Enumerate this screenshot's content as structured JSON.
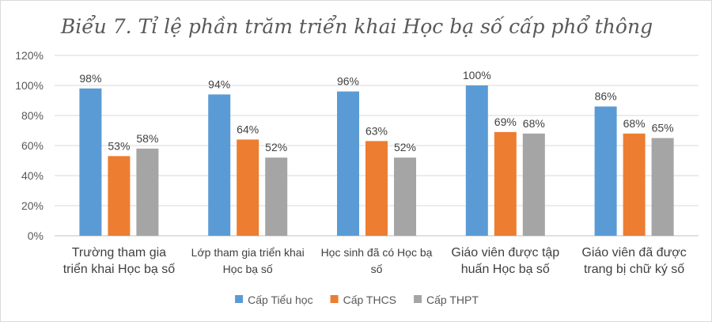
{
  "chart_data": {
    "type": "bar",
    "title": "Biểu 7. Tỉ lệ phần trăm triển khai Học bạ số cấp phổ thông",
    "categories": [
      [
        "Trường tham gia",
        "triển khai Học bạ số"
      ],
      [
        "Lớp tham gia triển khai",
        "Học bạ số"
      ],
      [
        "Học sinh đã có Học bạ",
        "số"
      ],
      [
        "Giáo viên được tập",
        "huấn  Học bạ số"
      ],
      [
        "Giáo viên đã được",
        "trang bị chữ ký số"
      ]
    ],
    "series": [
      {
        "name": "Cấp Tiểu học",
        "color": "#5b9bd5",
        "values": [
          98,
          94,
          96,
          100,
          86
        ],
        "labels": [
          "98%",
          "94%",
          "96%",
          "100%",
          "86%"
        ]
      },
      {
        "name": "Cấp THCS",
        "color": "#ed7d31",
        "values": [
          53,
          64,
          63,
          69,
          68
        ],
        "labels": [
          "53%",
          "64%",
          "63%",
          "69%",
          "68%"
        ]
      },
      {
        "name": "Cấp THPT",
        "color": "#a5a5a5",
        "values": [
          58,
          52,
          52,
          68,
          65
        ],
        "labels": [
          "58%",
          "52%",
          "52%",
          "68%",
          "65%"
        ]
      }
    ],
    "ylim": [
      0,
      120
    ],
    "yticks": [
      "0%",
      "20%",
      "40%",
      "60%",
      "80%",
      "100%",
      "120%"
    ],
    "grid": true,
    "legend": "bottom"
  }
}
